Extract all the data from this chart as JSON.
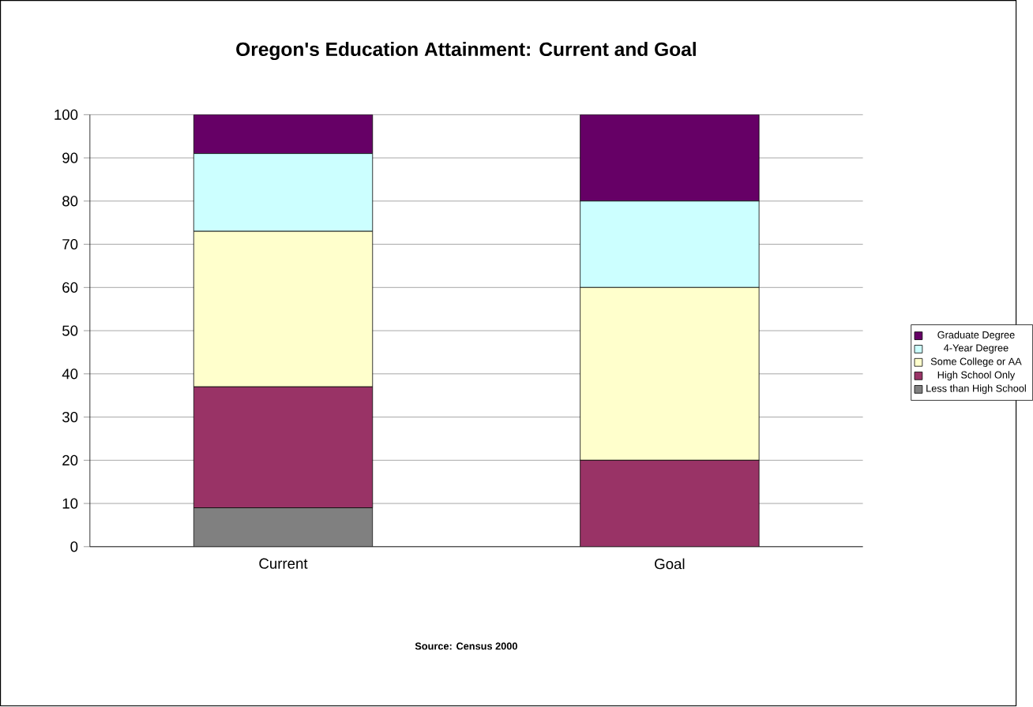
{
  "chart_data": {
    "type": "bar",
    "stacked": true,
    "title": "Oregon's Education Attainment: Current and Goal",
    "categories": [
      "Current",
      "Goal"
    ],
    "series": [
      {
        "name": "Less than High School",
        "color": "#808080",
        "values": [
          9,
          0
        ]
      },
      {
        "name": "High School Only",
        "color": "#993366",
        "values": [
          28,
          20
        ]
      },
      {
        "name": "Some College or AA",
        "color": "#ffffcc",
        "values": [
          36,
          40
        ]
      },
      {
        "name": "4-Year Degree",
        "color": "#ccffff",
        "values": [
          18,
          20
        ]
      },
      {
        "name": "Graduate Degree",
        "color": "#660066",
        "values": [
          9,
          20
        ]
      }
    ],
    "ylim": [
      0,
      100
    ],
    "yticks": [
      0,
      10,
      20,
      30,
      40,
      50,
      60,
      70,
      80,
      90,
      100
    ],
    "grid": "y",
    "legend": "right",
    "annotations": [
      "Source:  Census 2000"
    ]
  }
}
